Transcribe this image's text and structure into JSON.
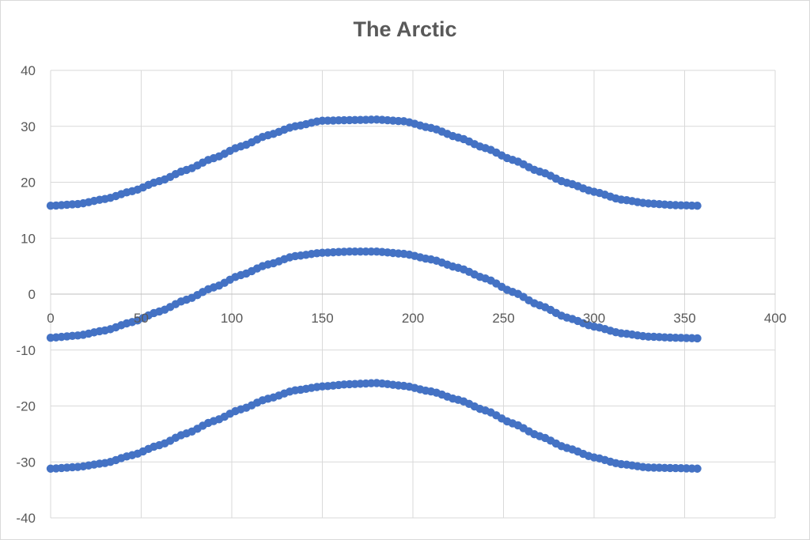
{
  "chart_data": {
    "type": "scatter",
    "title": "The Arctic",
    "xlabel": "",
    "ylabel": "",
    "xlim": [
      0,
      400
    ],
    "ylim": [
      -40,
      40
    ],
    "x_ticks": [
      0,
      50,
      100,
      150,
      200,
      250,
      300,
      350,
      400
    ],
    "y_ticks": [
      40,
      30,
      20,
      10,
      0,
      -10,
      -20,
      -30,
      -40
    ],
    "grid": true,
    "legend": "none",
    "marker_color": "#4472C4",
    "x_step": 3,
    "x_max": 357,
    "series": [
      {
        "x": [
          0,
          15,
          30,
          45,
          60,
          75,
          90,
          105,
          120,
          135,
          150,
          165,
          180,
          195,
          210,
          225,
          240,
          255,
          270,
          285,
          300,
          315,
          330,
          345,
          357
        ],
        "y": [
          15.8,
          16.1,
          17.0,
          18.4,
          20.2,
          22.2,
          24.3,
          26.4,
          28.4,
          30.0,
          31.0,
          31.1,
          31.2,
          30.9,
          29.7,
          28.0,
          26.1,
          24.0,
          21.9,
          19.9,
          18.3,
          16.9,
          16.2,
          15.9,
          15.8
        ]
      },
      {
        "x": [
          0,
          15,
          30,
          45,
          60,
          75,
          90,
          105,
          120,
          135,
          150,
          165,
          180,
          195,
          210,
          225,
          240,
          255,
          270,
          285,
          300,
          315,
          330,
          345,
          357
        ],
        "y": [
          -7.8,
          -7.4,
          -6.5,
          -5.0,
          -3.1,
          -1.0,
          1.2,
          3.4,
          5.3,
          6.8,
          7.4,
          7.6,
          7.6,
          7.2,
          6.2,
          4.7,
          2.8,
          0.4,
          -2.0,
          -4.2,
          -5.8,
          -7.0,
          -7.6,
          -7.8,
          -7.9
        ]
      },
      {
        "x": [
          0,
          15,
          30,
          45,
          60,
          75,
          90,
          105,
          120,
          135,
          150,
          165,
          180,
          195,
          210,
          225,
          240,
          255,
          270,
          285,
          300,
          315,
          330,
          345,
          357
        ],
        "y": [
          -31.2,
          -30.9,
          -30.2,
          -28.8,
          -27.0,
          -24.9,
          -22.7,
          -20.6,
          -18.7,
          -17.2,
          -16.5,
          -16.1,
          -15.9,
          -16.4,
          -17.4,
          -18.9,
          -20.8,
          -23.1,
          -25.4,
          -27.5,
          -29.2,
          -30.4,
          -31.0,
          -31.1,
          -31.2
        ]
      }
    ]
  }
}
